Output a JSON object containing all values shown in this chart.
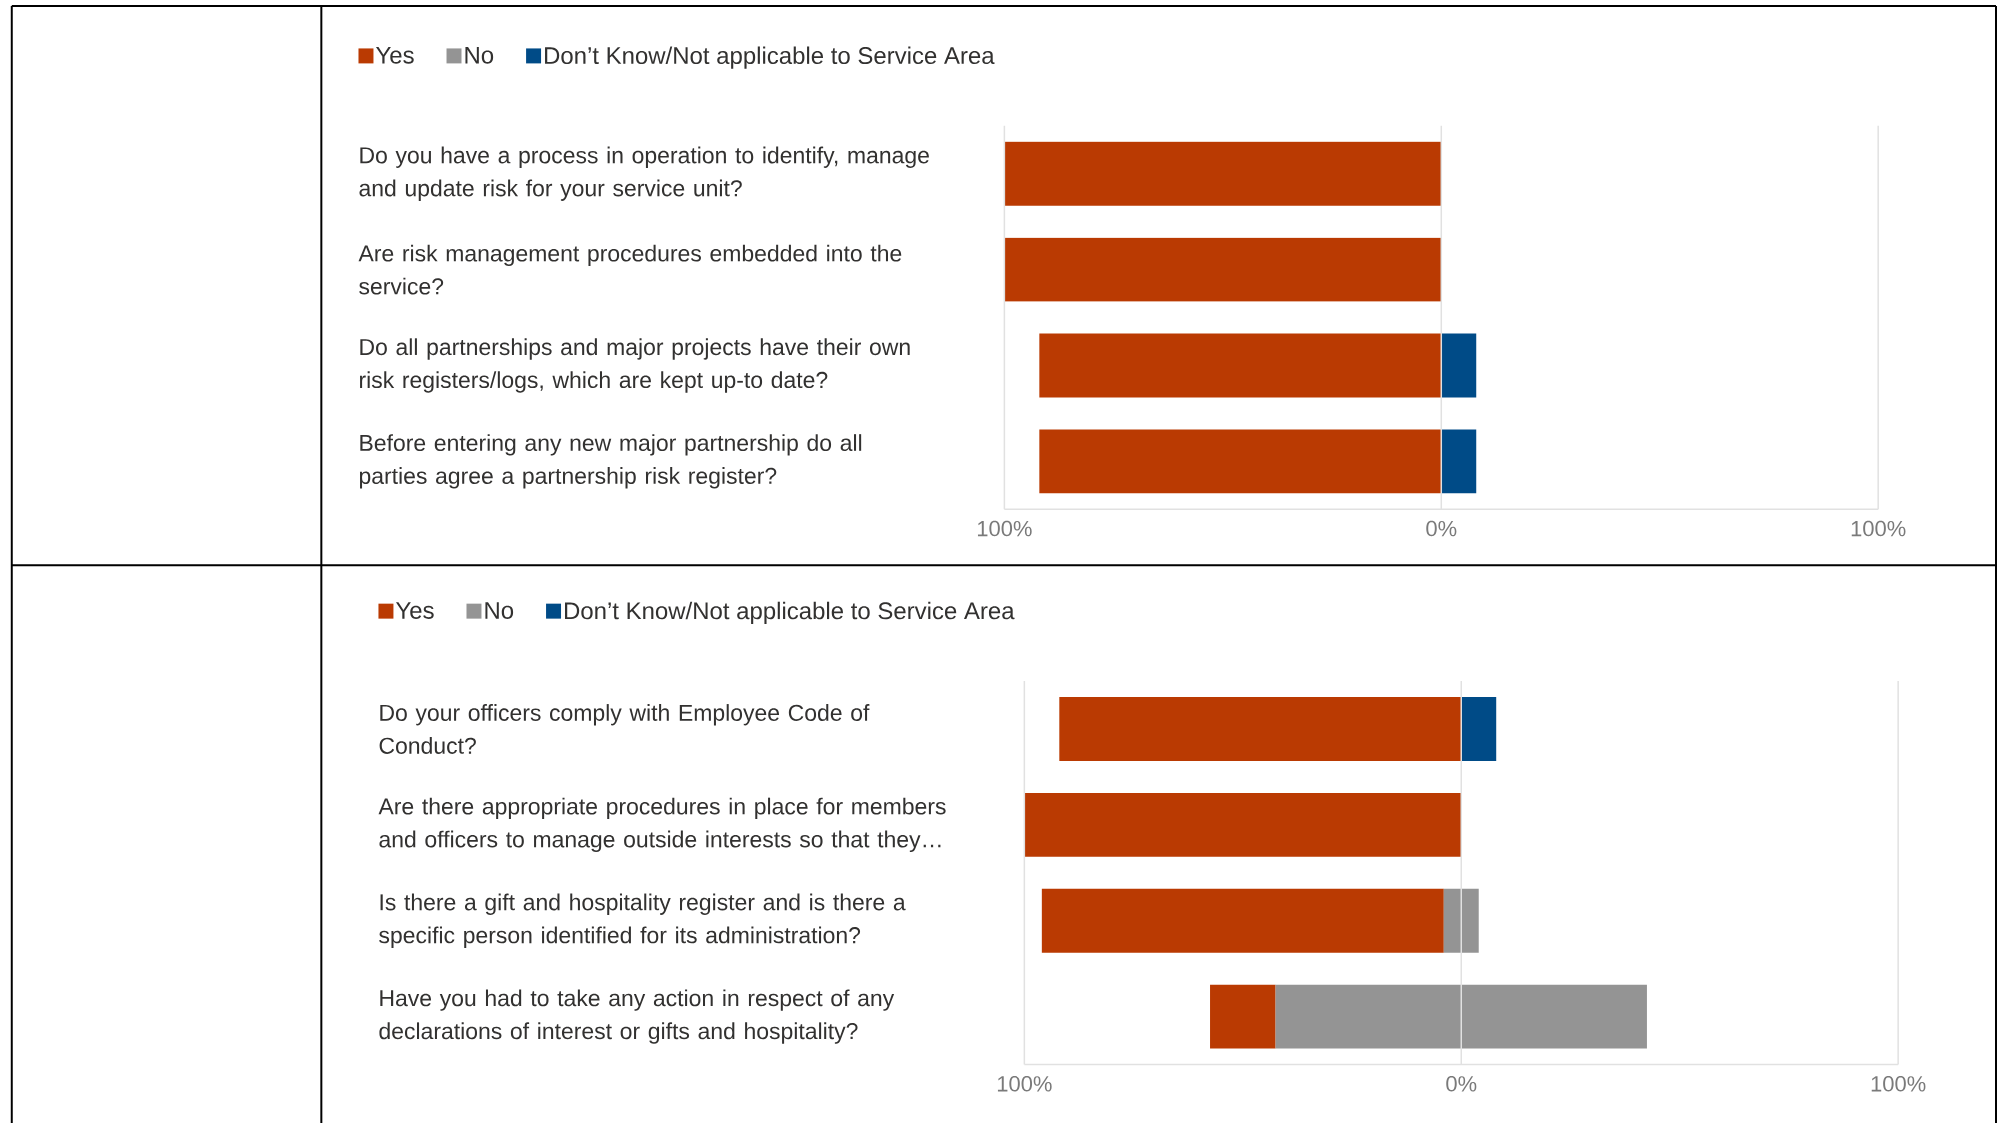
{
  "chart_data": [
    {
      "type": "bar",
      "orientation": "horizontal",
      "categories": [
        "Do you have a process in operation to identify, manage and update risk for your service unit?",
        "Are risk management procedures embedded into the service?",
        "Do all partnerships and major projects have their own risk registers/logs, which are kept up-to date?",
        "Before entering any new major partnership do all parties agree a partnership risk register?"
      ],
      "series": [
        {
          "name": "Yes",
          "color": "#ba3a02",
          "values": [
            100,
            100,
            92,
            92
          ],
          "base": [
            -100,
            -100,
            -92,
            -92
          ]
        },
        {
          "name": "No",
          "color": "#949494",
          "values": [
            null,
            null,
            null,
            null
          ]
        },
        {
          "name": "Don’t Know/Not applicable to Service Area",
          "color": "#004b87",
          "values": [
            null,
            null,
            8,
            8
          ],
          "base": [
            null,
            null,
            0,
            0
          ]
        }
      ],
      "xlim": [
        -100,
        100
      ],
      "xticks": [
        {
          "value": -100,
          "label": "100%"
        },
        {
          "value": 0,
          "label": "0%"
        },
        {
          "value": 100,
          "label": "100%"
        }
      ],
      "grid": "x",
      "legend": "top left"
    },
    {
      "type": "bar",
      "orientation": "horizontal",
      "categories": [
        "Do your officers comply with Employee Code of Conduct?",
        "Are there appropriate procedures in place for members and officers to manage outside interests so that they…",
        "Is there a gift and hospitality register and is there a specific person identified for its administration?",
        "Have you had to take any action in respect of any declarations of interest or gifts and hospitality?"
      ],
      "series": [
        {
          "name": "Yes",
          "color": "#ba3a02",
          "values": [
            92,
            100,
            92,
            15
          ],
          "base": [
            -92,
            -100,
            -96,
            -57.5
          ]
        },
        {
          "name": "No",
          "color": "#949494",
          "values": [
            null,
            null,
            8,
            85
          ],
          "base": [
            null,
            null,
            -4,
            -42.5
          ]
        },
        {
          "name": "Don’t Know/Not applicable to Service Area",
          "color": "#004b87",
          "values": [
            8,
            null,
            null,
            null
          ],
          "base": [
            0,
            null,
            null,
            null
          ]
        }
      ],
      "xlim": [
        -100,
        100
      ],
      "xticks": [
        {
          "value": -100,
          "label": "100%"
        },
        {
          "value": 0,
          "label": "0%"
        },
        {
          "value": 100,
          "label": "100%"
        }
      ],
      "grid": "x",
      "legend": "top left"
    }
  ]
}
